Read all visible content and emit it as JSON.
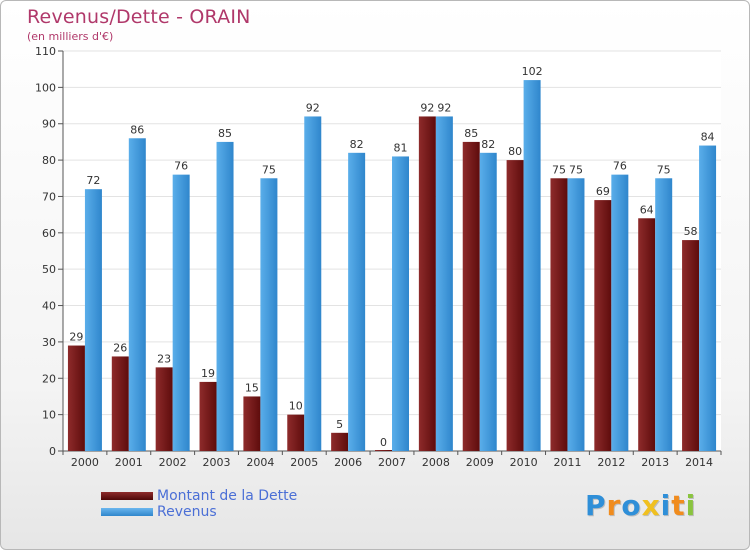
{
  "chart_data": {
    "type": "bar",
    "title": "Revenus/Dette - ORAIN",
    "subtitle": "(en milliers d'€)",
    "categories": [
      "2000",
      "2001",
      "2002",
      "2003",
      "2004",
      "2005",
      "2006",
      "2007",
      "2008",
      "2009",
      "2010",
      "2011",
      "2012",
      "2013",
      "2014"
    ],
    "series": [
      {
        "name": "Montant de la Dette",
        "color": "#7a1a1a",
        "values": [
          29,
          26,
          23,
          19,
          15,
          10,
          5,
          0,
          92,
          85,
          80,
          75,
          69,
          64,
          58
        ]
      },
      {
        "name": "Revenus",
        "color": "#3d97dc",
        "values": [
          72,
          86,
          76,
          85,
          75,
          92,
          82,
          81,
          92,
          82,
          102,
          75,
          76,
          75,
          84
        ]
      }
    ],
    "ylim": [
      0,
      110
    ],
    "yticks": [
      0,
      10,
      20,
      30,
      40,
      50,
      60,
      70,
      80,
      90,
      100,
      110
    ],
    "grid": true,
    "legend_position": "bottom-left"
  },
  "logo": {
    "letters": [
      "P",
      "r",
      "o",
      "x",
      "i",
      "t",
      "i"
    ],
    "colors": [
      "#2f8fd8",
      "#f08c1e",
      "#2f8fd8",
      "#f0c020",
      "#2f8fd8",
      "#f08c1e",
      "#8ac43f"
    ]
  }
}
